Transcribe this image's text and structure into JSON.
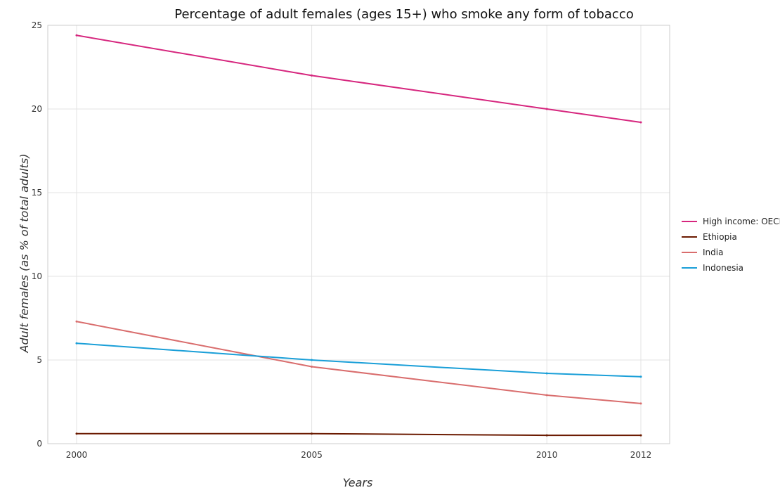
{
  "chart_data": {
    "type": "line",
    "title": "Percentage of adult females (ages 15+) who smoke any form of tobacco",
    "xlabel": "Years",
    "ylabel": "Adult females (as % of total adults)",
    "categories": [
      "2000",
      "2005",
      "2010",
      "2012"
    ],
    "ylim": [
      0,
      25
    ],
    "yticks": [
      0,
      5,
      10,
      15,
      20,
      25
    ],
    "grid": true,
    "legend_position": "right",
    "series": [
      {
        "name": "High income: OECD",
        "color": "#d6267e",
        "values": [
          24.4,
          22.0,
          20.0,
          19.2
        ]
      },
      {
        "name": "Ethiopia",
        "color": "#6b1a00",
        "values": [
          0.6,
          0.6,
          0.5,
          0.5
        ]
      },
      {
        "name": "India",
        "color": "#d96d6d",
        "values": [
          7.3,
          4.6,
          2.9,
          2.4
        ]
      },
      {
        "name": "Indonesia",
        "color": "#1a9fd8",
        "values": [
          6.0,
          5.0,
          4.2,
          4.0
        ]
      }
    ]
  }
}
